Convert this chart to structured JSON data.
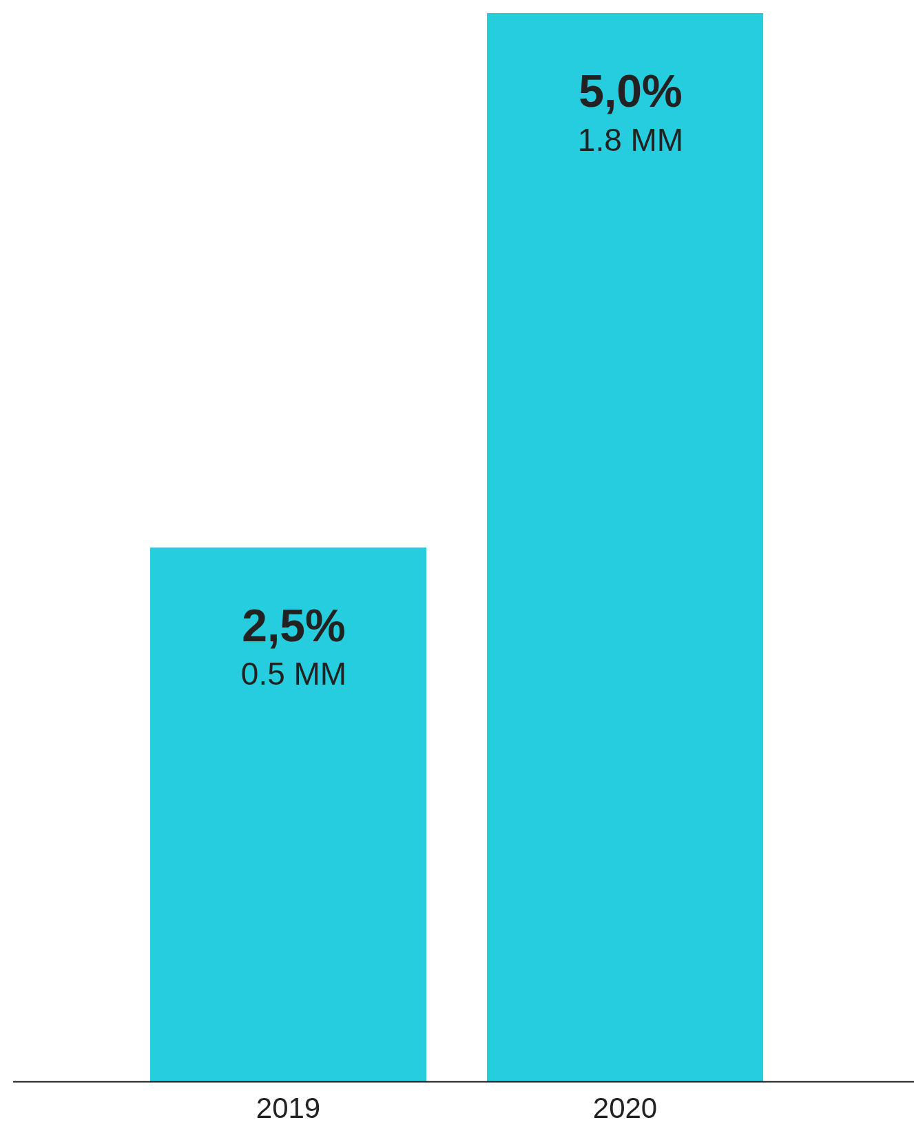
{
  "chart_data": {
    "type": "bar",
    "categories": [
      "2019",
      "2020"
    ],
    "values": [
      2.5,
      5.0
    ],
    "color": "#25cdde",
    "value_labels": [
      "2,5%",
      "5,0%"
    ],
    "annotations": [
      "0.5 MM",
      "1.8 MM"
    ],
    "grid": false,
    "legend": false
  }
}
